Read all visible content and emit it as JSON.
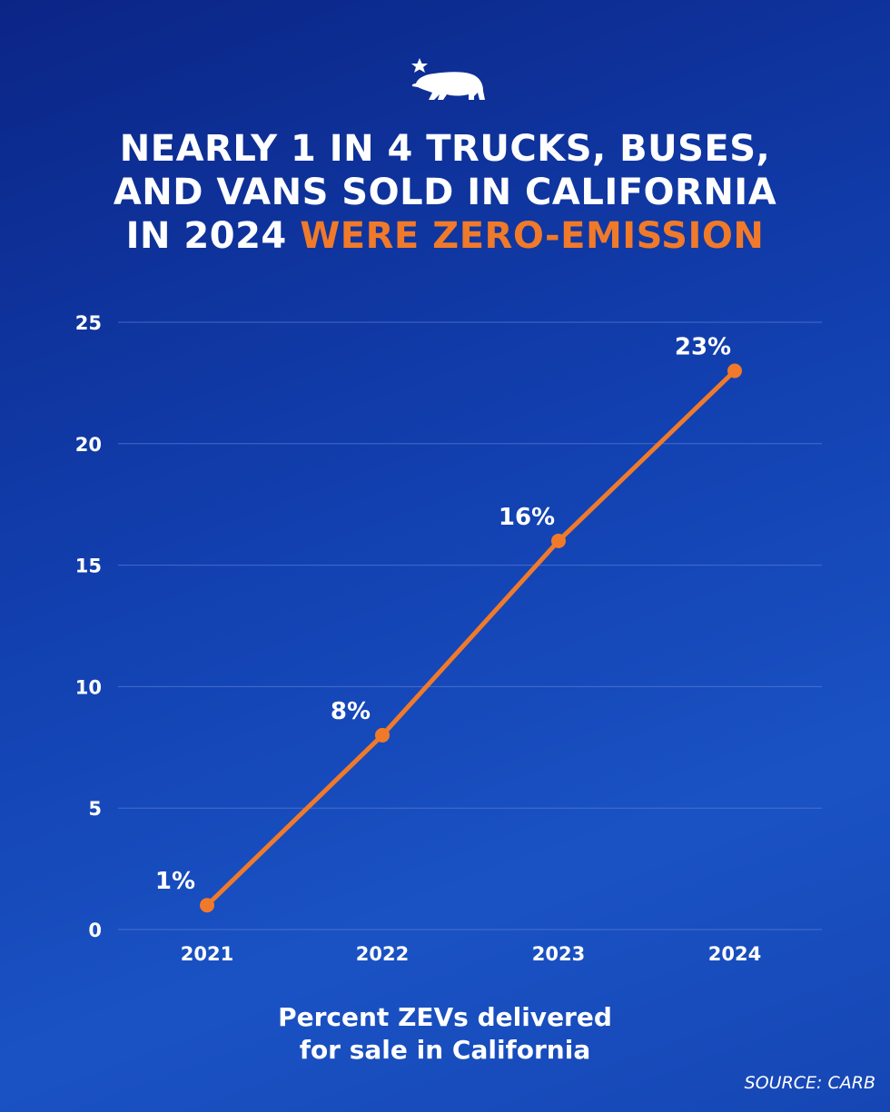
{
  "colors": {
    "background": "#1240b0",
    "accent": "#f07a2a",
    "text": "#ffffff",
    "grid": "#5a7fd6"
  },
  "logo": {
    "icon": "california-bear-star-icon"
  },
  "title": {
    "line1": "NEARLY 1 IN 4 TRUCKS, BUSES,",
    "line2": "AND VANS SOLD IN CALIFORNIA",
    "line3_plain": "IN 2024 ",
    "line3_highlight": "WERE ZERO-EMISSION"
  },
  "chart_data": {
    "type": "line",
    "categories": [
      "2021",
      "2022",
      "2023",
      "2024"
    ],
    "values": [
      1,
      8,
      16,
      23
    ],
    "data_labels": [
      "1%",
      "8%",
      "16%",
      "23%"
    ],
    "ylim": [
      0,
      25
    ],
    "yticks": [
      "0",
      "5",
      "10",
      "15",
      "20",
      "25"
    ],
    "grid": true,
    "xlabel": "Percent ZEVs delivered for sale in California",
    "ylabel": ""
  },
  "caption": {
    "line1": "Percent ZEVs delivered",
    "line2": "for sale in California"
  },
  "source": "SOURCE: CARB"
}
